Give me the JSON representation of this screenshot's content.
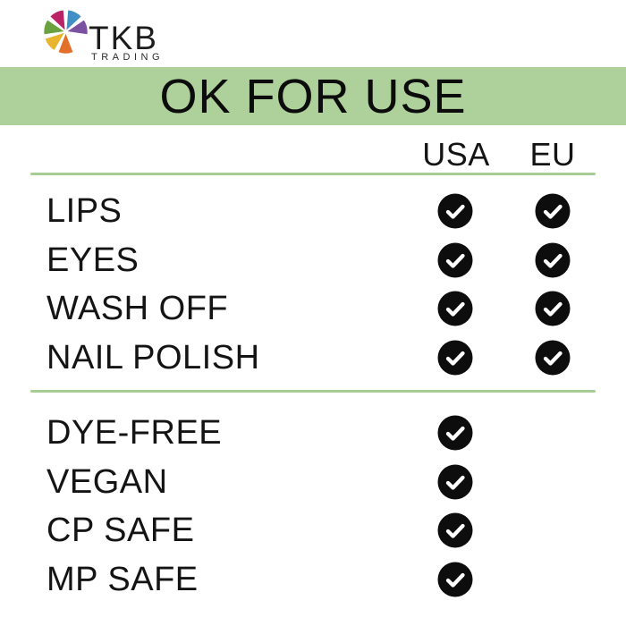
{
  "logo": {
    "brand": "TKB",
    "subtitle": "TRADING",
    "wheel": {
      "segments": [
        {
          "name": "blue",
          "color": "#4090c5"
        },
        {
          "name": "purple",
          "color": "#7b51a2"
        },
        {
          "name": "gap",
          "color": null
        },
        {
          "name": "orange",
          "color": "#e2702b"
        },
        {
          "name": "yellow",
          "color": "#e9b42e"
        },
        {
          "name": "green",
          "color": "#69a23e"
        },
        {
          "name": "magenta",
          "color": "#ba2365"
        }
      ]
    }
  },
  "banner": {
    "title": "OK FOR USE"
  },
  "colors": {
    "banner_bg": "#aed19c",
    "divider": "#a6cd93",
    "check_bg": "#0d0d0d",
    "check_mark": "#ffffff",
    "text": "#141414"
  },
  "chart_data": {
    "type": "table",
    "title": "OK FOR USE",
    "columns": [
      "USA",
      "EU"
    ],
    "sections": [
      {
        "name": "uses",
        "rows": [
          {
            "label": "LIPS",
            "USA": true,
            "EU": true
          },
          {
            "label": "EYES",
            "USA": true,
            "EU": true
          },
          {
            "label": "WASH OFF",
            "USA": true,
            "EU": true
          },
          {
            "label": "NAIL POLISH",
            "USA": true,
            "EU": true
          }
        ]
      },
      {
        "name": "attributes",
        "rows": [
          {
            "label": "DYE-FREE",
            "USA": true,
            "EU": false
          },
          {
            "label": "VEGAN",
            "USA": true,
            "EU": false
          },
          {
            "label": "CP SAFE",
            "USA": true,
            "EU": false
          },
          {
            "label": "MP SAFE",
            "USA": true,
            "EU": false
          }
        ]
      }
    ]
  }
}
